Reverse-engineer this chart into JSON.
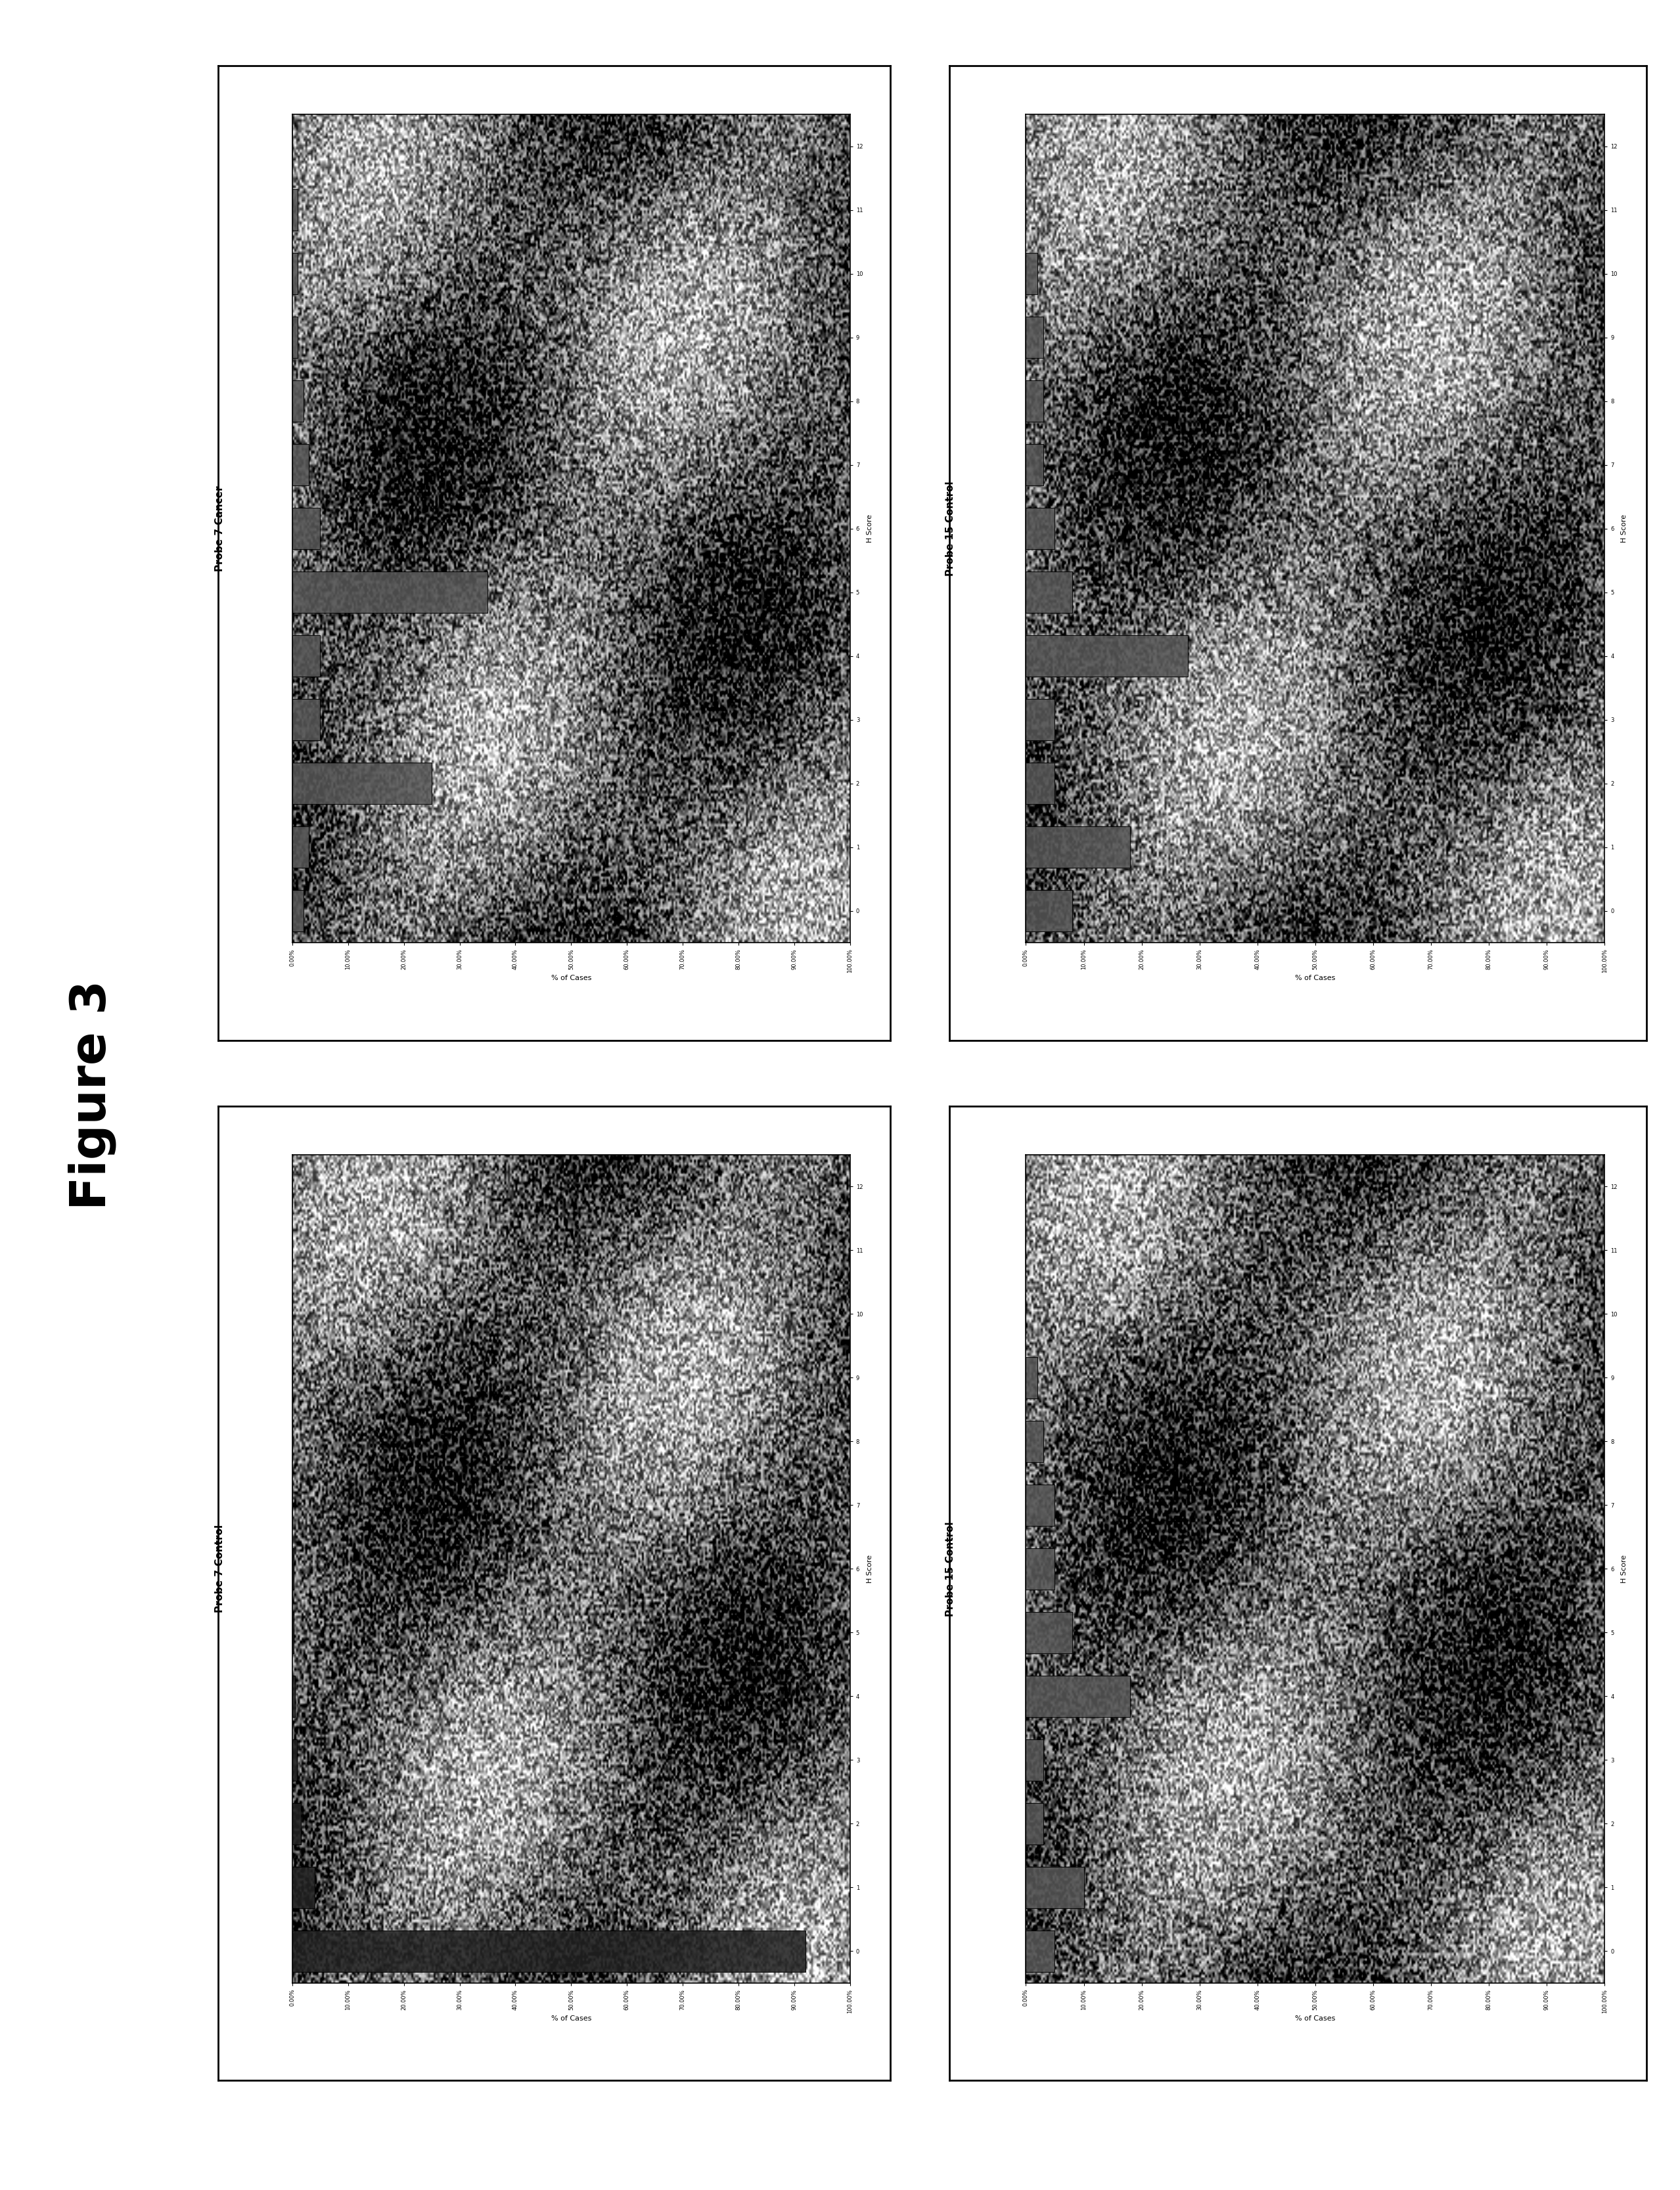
{
  "figure_label": "Figure 3",
  "panels": [
    {
      "title": "Probe 7 Cancer",
      "row": 0,
      "col": 0,
      "pct_cases": [
        2.0,
        3.0,
        25.0,
        5.0,
        5.0,
        35.0,
        5.0,
        3.0,
        2.0,
        1.0,
        1.0,
        1.0,
        0.0
      ],
      "bar_color": "#555555"
    },
    {
      "title": "Probe 15 Control",
      "row": 0,
      "col": 1,
      "pct_cases": [
        8.0,
        18.0,
        5.0,
        5.0,
        28.0,
        8.0,
        5.0,
        3.0,
        3.0,
        3.0,
        2.0,
        0.0,
        0.0
      ],
      "bar_color": "#555555"
    },
    {
      "title": "Probe 7 Control",
      "row": 1,
      "col": 0,
      "pct_cases": [
        92.0,
        4.0,
        1.5,
        0.8,
        0.5,
        0.3,
        0.2,
        0.0,
        0.0,
        0.0,
        0.0,
        0.0,
        0.0
      ],
      "bar_color": "#222222"
    },
    {
      "title": "Probe 15 Control",
      "row": 1,
      "col": 1,
      "pct_cases": [
        5.0,
        10.0,
        3.0,
        3.0,
        18.0,
        8.0,
        5.0,
        5.0,
        3.0,
        2.0,
        0.0,
        0.0,
        0.0
      ],
      "bar_color": "#555555"
    }
  ],
  "h_scores": [
    0,
    1,
    2,
    3,
    4,
    5,
    6,
    7,
    8,
    9,
    10,
    11,
    12
  ],
  "xtick_labels": [
    "0.00%",
    "10.00%",
    "20.00%",
    "30.00%",
    "40.00%",
    "50.00%",
    "60.00%",
    "70.00%",
    "80.00%",
    "90.00%",
    "100.00%"
  ],
  "xtick_values": [
    0,
    10,
    20,
    30,
    40,
    50,
    60,
    70,
    80,
    90,
    100
  ],
  "xlabel": "% of Cases",
  "ylabel": "H Score",
  "xlim": [
    0,
    100
  ],
  "ylim_min": -0.5,
  "ylim_max": 12.5,
  "figure_label_fontsize": 54,
  "title_fontsize": 11,
  "tick_fontsize": 6,
  "axis_label_fontsize": 8
}
